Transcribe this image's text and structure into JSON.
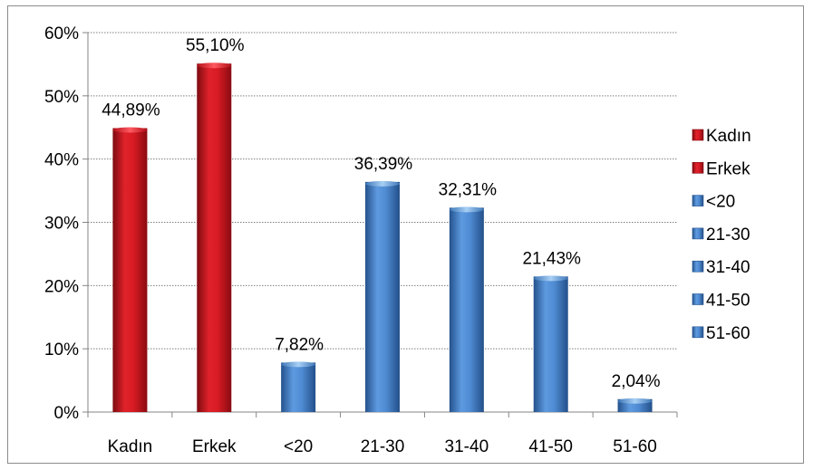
{
  "chart_data": {
    "type": "bar",
    "title": "",
    "xlabel": "",
    "ylabel": "",
    "ylim": [
      0,
      60
    ],
    "yticks": [
      0,
      10,
      20,
      30,
      40,
      50,
      60
    ],
    "ytick_labels": [
      "0%",
      "10%",
      "20%",
      "30%",
      "40%",
      "50%",
      "60%"
    ],
    "grid": true,
    "legend_position": "right",
    "categories": [
      "Kadın",
      "Erkek",
      "<20",
      "21-30",
      "31-40",
      "41-50",
      "51-60"
    ],
    "values": [
      44.89,
      55.1,
      7.82,
      36.39,
      32.31,
      21.43,
      2.04
    ],
    "data_labels": [
      "44,89%",
      "55,10%",
      "7,82%",
      "36,39%",
      "32,31%",
      "21,43%",
      "2,04%"
    ],
    "bar_colors": [
      "#c8101a",
      "#c8101a",
      "#4a86c8",
      "#4a86c8",
      "#4a86c8",
      "#4a86c8",
      "#4a86c8"
    ],
    "legend": [
      {
        "name": "Kadın",
        "color": "#c8101a"
      },
      {
        "name": "Erkek",
        "color": "#c8101a"
      },
      {
        "name": "<20",
        "color": "#4a86c8"
      },
      {
        "name": "21-30",
        "color": "#4a86c8"
      },
      {
        "name": "31-40",
        "color": "#4a86c8"
      },
      {
        "name": "41-50",
        "color": "#4a86c8"
      },
      {
        "name": "51-60",
        "color": "#4a86c8"
      }
    ]
  }
}
